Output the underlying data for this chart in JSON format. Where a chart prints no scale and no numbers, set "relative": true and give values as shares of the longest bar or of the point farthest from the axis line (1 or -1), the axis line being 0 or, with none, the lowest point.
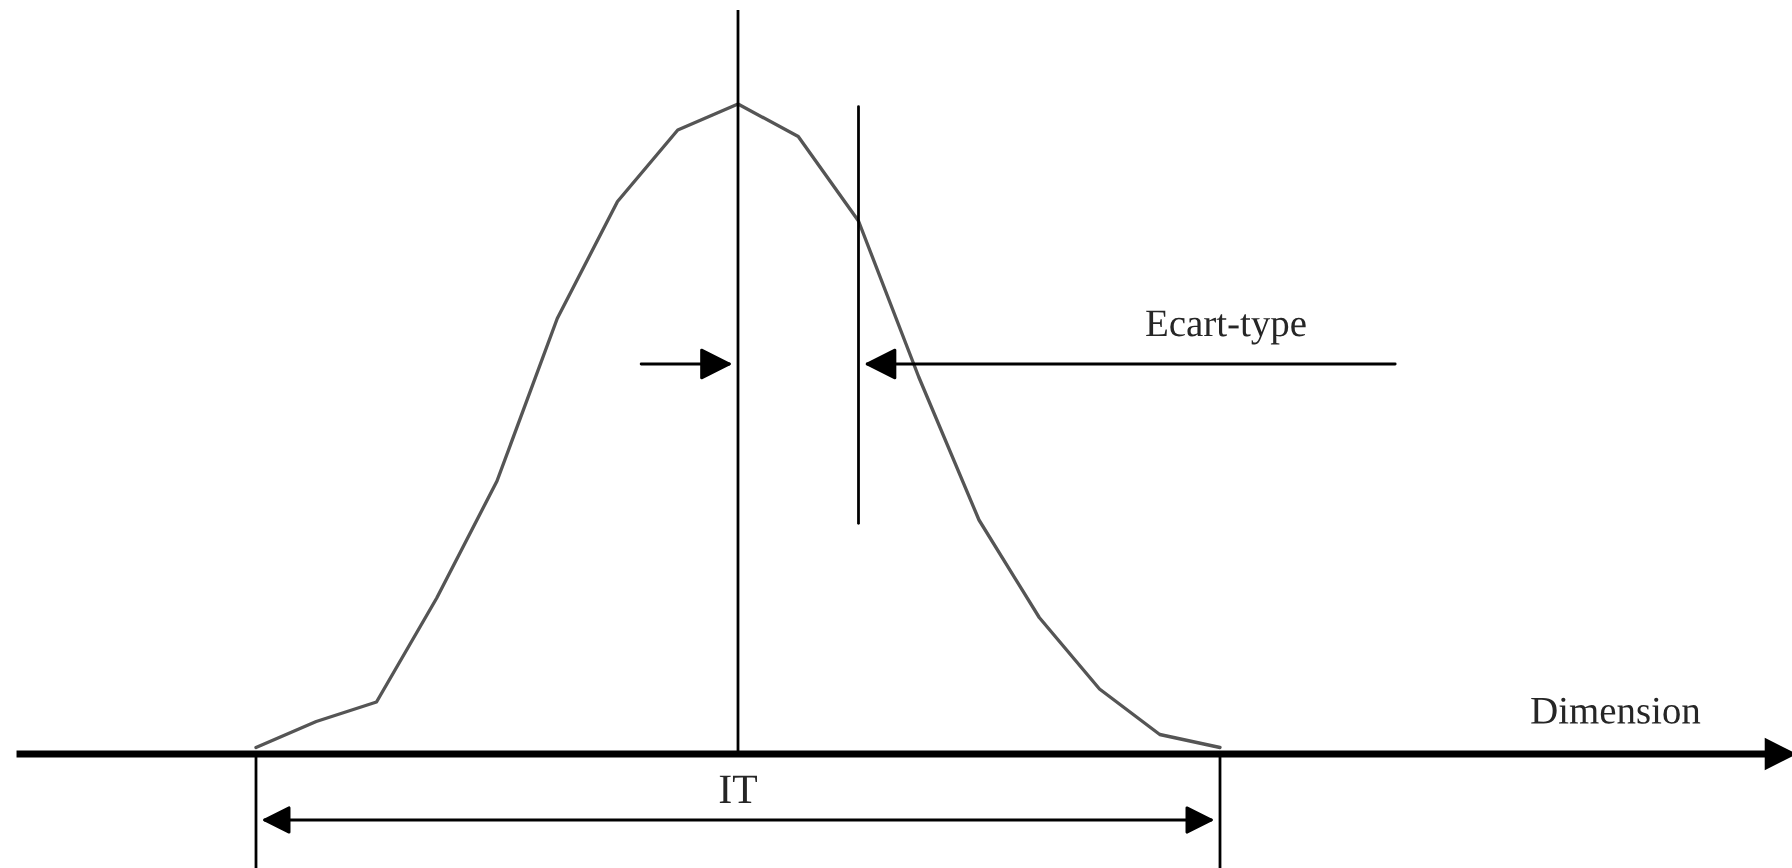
{
  "chart_data": {
    "type": "line",
    "relative": true,
    "categories": [
      null,
      null,
      null,
      null,
      null,
      null,
      null,
      null,
      null,
      null,
      null,
      null,
      null,
      null,
      null,
      null,
      null
    ],
    "series": [
      {
        "color": "#555555",
        "values": [
          0.01,
          0.05,
          0.08,
          0.24,
          0.42,
          0.67,
          0.85,
          0.96,
          1,
          0.95,
          0.82,
          0.58,
          0.36,
          0.21,
          0.1,
          0.03,
          0.01
        ]
      }
    ],
    "annotations": [
      "Ecart-type",
      "IT",
      "Dimension"
    ],
    "marker": "none",
    "line_style": "solid"
  }
}
